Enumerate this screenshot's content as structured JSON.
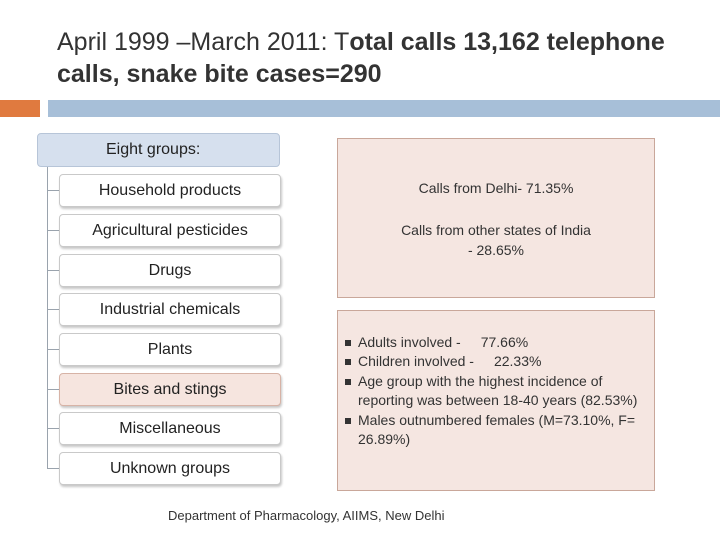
{
  "title": {
    "part1": "April 1999 –March 2011: T",
    "part2": "otal calls 13,162 telephone calls, snake bite cases=290"
  },
  "groups": {
    "header": "Eight groups:",
    "items": [
      "Household products",
      "Agricultural pesticides",
      "Drugs",
      "Industrial chemicals",
      "Plants",
      "Bites and stings",
      "Miscellaneous",
      "Unknown groups"
    ]
  },
  "calls": {
    "delhi": "Calls from Delhi- 71.35%",
    "other": "Calls from other states of India - 28.65%"
  },
  "stats": {
    "adults_label": "Adults   involved -",
    "adults_value": "77.66%",
    "children_label": "Children  involved -",
    "children_value": "22.33%",
    "age_group": "Age group with the highest incidence of reporting was between 18-40 years (82.53%)",
    "males": " Males outnumbered females (M=73.10%, F= 26.89%)"
  },
  "footer": "Department of Pharmacology, AIIMS, New Delhi",
  "colors": {
    "accent": "#e07a3f",
    "rule": "#a7bfd8",
    "highlight": "#f6e5df"
  }
}
